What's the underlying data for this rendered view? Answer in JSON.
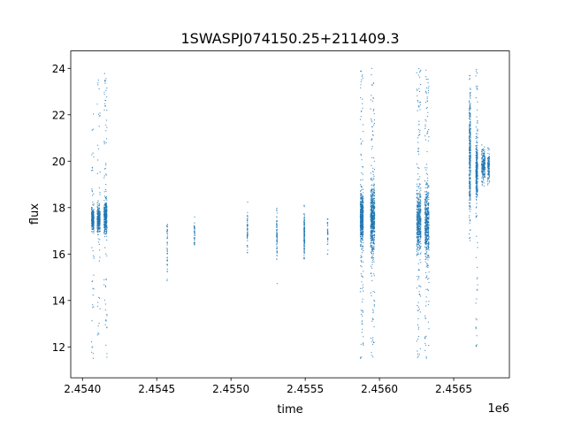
{
  "chart_data": {
    "type": "scatter",
    "title": "1SWASPJ074150.25+211409.3",
    "xlabel": "time",
    "ylabel": "flux",
    "x_offset_label": "1e6",
    "xlim": [
      2453921,
      2456875
    ],
    "ylim": [
      10.67,
      24.75
    ],
    "xticks": [
      2454000,
      2454500,
      2455000,
      2455500,
      2456000,
      2456500
    ],
    "xtick_labels": [
      "2.4540",
      "2.4545",
      "2.4550",
      "2.4555",
      "2.4560",
      "2.4565"
    ],
    "yticks": [
      12,
      14,
      16,
      18,
      20,
      22,
      24
    ],
    "ytick_labels": [
      "12",
      "14",
      "16",
      "18",
      "20",
      "22",
      "24"
    ],
    "grid": false,
    "marker_color": "#1f77b4",
    "clusters": [
      {
        "x": 2454069,
        "x_spread": 8,
        "y_mean": 17.5,
        "y_sd": 0.25,
        "n": 260,
        "outliers": 40,
        "y_range": [
          11.5,
          22.5
        ]
      },
      {
        "x": 2454109,
        "x_spread": 10,
        "y_mean": 17.5,
        "y_sd": 0.25,
        "n": 260,
        "outliers": 40,
        "y_range": [
          12.5,
          23.9
        ]
      },
      {
        "x": 2454155,
        "x_spread": 10,
        "y_mean": 17.6,
        "y_sd": 0.35,
        "n": 320,
        "outliers": 70,
        "y_range": [
          11.5,
          23.9
        ]
      },
      {
        "x": 2454571,
        "x_spread": 2,
        "y_mean": 16.4,
        "y_sd": 0.6,
        "n": 40,
        "outliers": 5,
        "y_range": [
          14.4,
          17.9
        ]
      },
      {
        "x": 2454754,
        "x_spread": 2,
        "y_mean": 16.8,
        "y_sd": 0.3,
        "n": 40,
        "outliers": 3,
        "y_range": [
          16.2,
          17.6
        ]
      },
      {
        "x": 2455111,
        "x_spread": 2,
        "y_mean": 16.9,
        "y_sd": 0.4,
        "n": 50,
        "outliers": 4,
        "y_range": [
          15.1,
          18.9
        ]
      },
      {
        "x": 2455309,
        "x_spread": 2,
        "y_mean": 16.9,
        "y_sd": 0.5,
        "n": 70,
        "outliers": 4,
        "y_range": [
          14.5,
          18.5
        ]
      },
      {
        "x": 2455494,
        "x_spread": 2,
        "y_mean": 16.9,
        "y_sd": 0.5,
        "n": 140,
        "outliers": 4,
        "y_range": [
          15.8,
          18.1
        ]
      },
      {
        "x": 2455651,
        "x_spread": 2,
        "y_mean": 16.9,
        "y_sd": 0.4,
        "n": 30,
        "outliers": 3,
        "y_range": [
          16.0,
          17.5
        ]
      },
      {
        "x": 2455881,
        "x_spread": 10,
        "y_mean": 17.5,
        "y_sd": 0.55,
        "n": 450,
        "outliers": 90,
        "y_range": [
          11.5,
          23.9
        ]
      },
      {
        "x": 2455954,
        "x_spread": 14,
        "y_mean": 17.5,
        "y_sd": 0.7,
        "n": 550,
        "outliers": 110,
        "y_range": [
          11.4,
          24.0
        ]
      },
      {
        "x": 2456265,
        "x_spread": 14,
        "y_mean": 17.4,
        "y_sd": 0.65,
        "n": 420,
        "outliers": 100,
        "y_range": [
          11.4,
          24.0
        ]
      },
      {
        "x": 2456320,
        "x_spread": 14,
        "y_mean": 17.3,
        "y_sd": 0.75,
        "n": 420,
        "outliers": 110,
        "y_range": [
          11.5,
          24.0
        ]
      },
      {
        "x": 2456609,
        "x_spread": 5,
        "y_mean": 20.3,
        "y_sd": 1.2,
        "n": 300,
        "outliers": 40,
        "y_range": [
          16.5,
          24.0
        ]
      },
      {
        "x": 2456655,
        "x_spread": 6,
        "y_mean": 19.6,
        "y_sd": 0.7,
        "n": 280,
        "outliers": 60,
        "y_range": [
          12.0,
          24.0
        ]
      },
      {
        "x": 2456700,
        "x_spread": 12,
        "y_mean": 19.8,
        "y_sd": 0.35,
        "n": 220,
        "outliers": 6,
        "y_range": [
          18.5,
          20.7
        ]
      },
      {
        "x": 2456735,
        "x_spread": 6,
        "y_mean": 19.8,
        "y_sd": 0.3,
        "n": 120,
        "outliers": 3,
        "y_range": [
          18.5,
          20.7
        ]
      }
    ]
  }
}
